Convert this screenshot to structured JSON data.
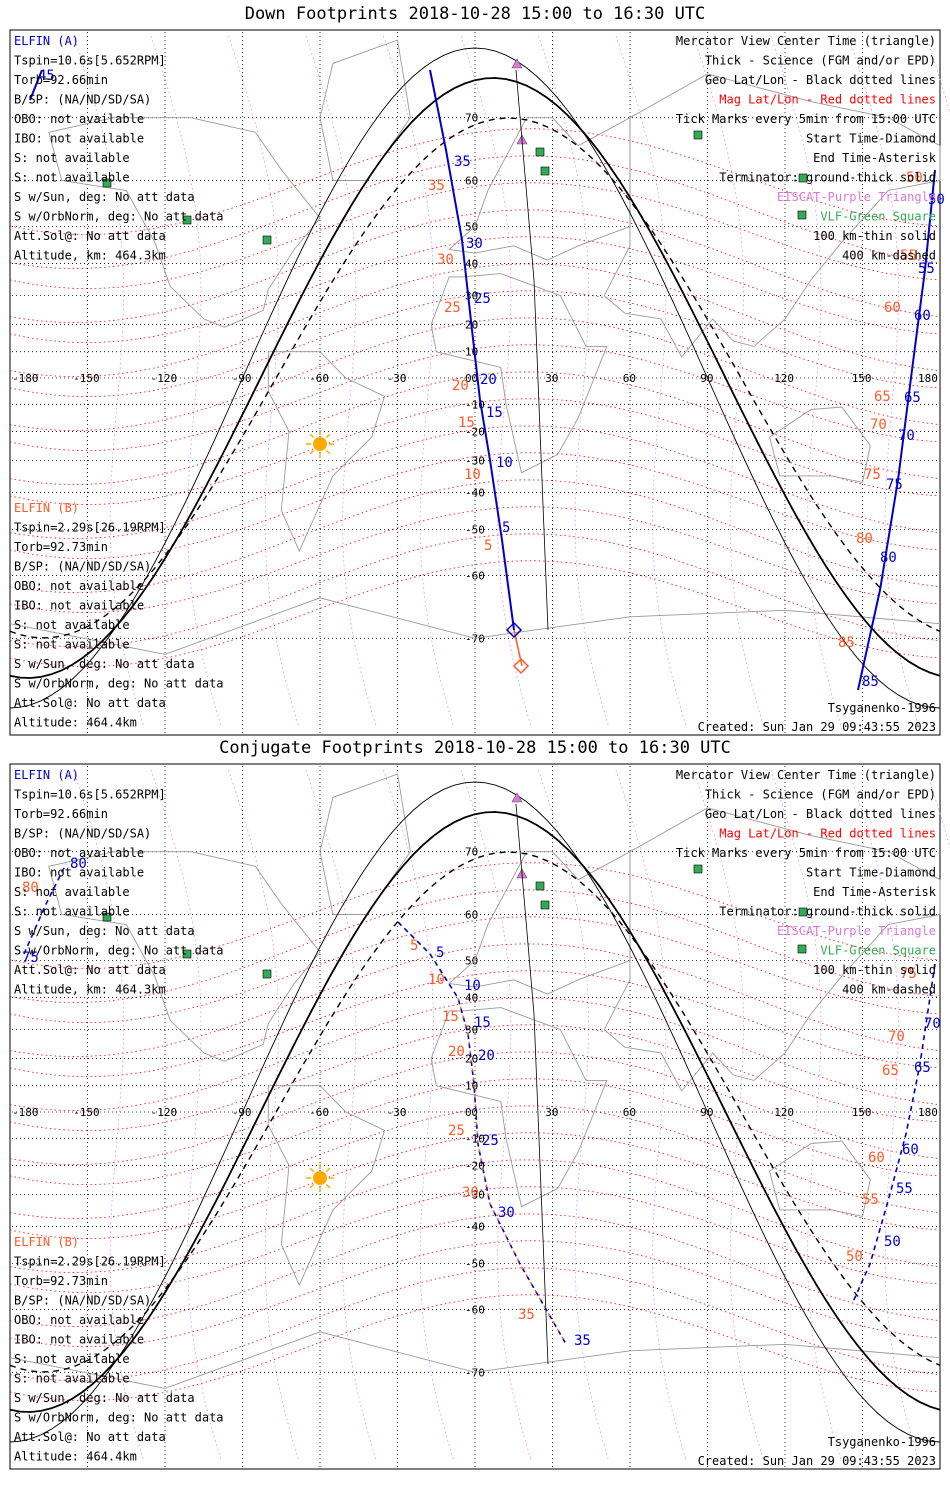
{
  "down": {
    "title": "Down Footprints 2018-10-28 15:00 to 16:30 UTC",
    "left_a": [
      "ELFIN (A)",
      "Tspin=10.6s[5.652RPM]",
      "Torb=92.66min",
      "B/SP: (NA/ND/SD/SA)",
      "OBO: not available",
      "IBO: not available",
      "S: not available",
      "S: not available",
      "S w/Sun, deg: No att data",
      "S w/OrbNorm, deg: No att data",
      "Att.Sol@: No att data",
      "Altitude, km: 464.3km"
    ],
    "left_b": [
      "ELFIN (B)",
      "Tspin=2.29s[26.19RPM]",
      "Torb=92.73min",
      "B/SP: (NA/ND/SD/SA)",
      "OBO: not available",
      "IBO: not available",
      "S: not available",
      "S: not available",
      "S w/Sun, deg: No att data",
      "S w/OrbNorm, deg: No att data",
      "Att.Sol@: No att data",
      "Altitude: 464.4km"
    ],
    "legend": [
      "Mercator View Center Time (triangle)",
      "Thick - Science (FGM and/or EPD)",
      "Geo Lat/Lon - Black dotted lines",
      "Mag Lat/Lon - Red dotted lines",
      "Tick Marks every 5min from 15:00 UTC",
      "Start Time-Diamond",
      "End Time-Asterisk",
      "Terminator: ground-thick solid",
      "EISCAT-Purple Triangle",
      "VLF-Green Square",
      "100 km-thin solid",
      "400 km-dashed"
    ],
    "footer_left": "Tsyganenko-1996",
    "footer_right": "Created: Sun Jan 29 09:43:55 2023",
    "track_a_labels": [
      "45",
      "35",
      "30",
      "25",
      "20",
      "15",
      "10",
      "5",
      "50",
      "55",
      "60",
      "65",
      "70",
      "75",
      "80",
      "85"
    ],
    "track_b_labels": [
      "35",
      "30",
      "25",
      "20",
      "15",
      "10",
      "5",
      "50",
      "55",
      "60",
      "65",
      "70",
      "75",
      "80",
      "85"
    ]
  },
  "conj": {
    "title": "Conjugate Footprints 2018-10-28 15:00 to 16:30 UTC",
    "left_a": [
      "ELFIN (A)",
      "Tspin=10.6s[5.652RPM]",
      "Torb=92.66min",
      "B/SP: (NA/ND/SD/SA)",
      "OBO: not available",
      "IBO: not available",
      "S: not available",
      "S: not available",
      "S w/Sun, deg: No att data",
      "S w/OrbNorm, deg: No att data",
      "Att.Sol@: No att data",
      "Altitude, km: 464.3km"
    ],
    "left_b": [
      "ELFIN (B)",
      "Tspin=2.29s[26.19RPM]",
      "Torb=92.73min",
      "B/SP: (NA/ND/SD/SA)",
      "OBO: not available",
      "IBO: not available",
      "S: not available",
      "S: not available",
      "S w/Sun, deg: No att data",
      "S w/OrbNorm, deg: No att data",
      "Att.Sol@: No att data",
      "Altitude: 464.4km"
    ],
    "legend": [
      "Mercator View Center Time (triangle)",
      "Thick - Science (FGM and/or EPD)",
      "Geo Lat/Lon - Black dotted lines",
      "Mag Lat/Lon - Red dotted lines",
      "Tick Marks every 5min from 15:00 UTC",
      "Start Time-Diamond",
      "End Time-Asterisk",
      "Terminator: ground-thick solid",
      "EISCAT-Purple Triangle",
      "VLF-Green Square",
      "100 km-thin solid",
      "400 km-dashed"
    ],
    "footer_left": "Tsyganenko-1996",
    "footer_right": "Created: Sun Jan 29 09:43:55 2023",
    "track_a_labels": [
      "80",
      "75",
      "5",
      "10",
      "15",
      "20",
      "25",
      "30",
      "35",
      "70",
      "65",
      "60",
      "55",
      "50"
    ],
    "track_b_labels": [
      "80",
      "5",
      "10",
      "15",
      "20",
      "25",
      "30",
      "35",
      "75",
      "70",
      "65",
      "60",
      "55",
      "50"
    ]
  },
  "axes": {
    "lon_labels": [
      "-180",
      "-150",
      "-120",
      "-90",
      "-60",
      "-30",
      "0",
      "30",
      "60",
      "90",
      "120",
      "150",
      "180"
    ],
    "lat_labels": [
      "70",
      "60",
      "50",
      "40",
      "30",
      "20",
      "10",
      "0",
      "-10",
      "-20",
      "-30",
      "-40",
      "-50",
      "-60",
      "-70"
    ]
  },
  "colors": {
    "elfin_a": "#0000cc",
    "elfin_b": "#ff5a2a",
    "mag_grid": "#ff0000",
    "eiscat": "#dd77dd",
    "vlf": "#33aa55",
    "sun": "#ffaa00"
  }
}
